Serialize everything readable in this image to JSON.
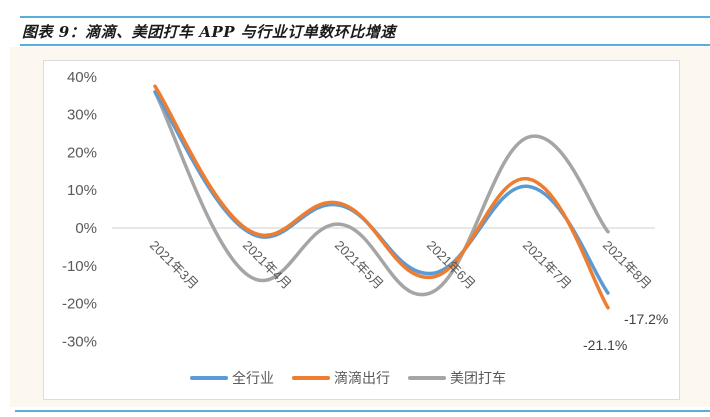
{
  "title": "图表 9：滴滴、美团打车 APP 与行业订单数环比增速",
  "colors": {
    "rule": "#5aaedb",
    "panel_bg": "#fdf8ef",
    "series_industry": "#5b9bd5",
    "series_didi": "#ed7d31",
    "series_meituan": "#a5a5a5"
  },
  "legend": {
    "items": [
      {
        "label": "全行业",
        "color": "#5b9bd5"
      },
      {
        "label": "滴滴出行",
        "color": "#ed7d31"
      },
      {
        "label": "美团打车",
        "color": "#a5a5a5"
      }
    ]
  },
  "data_labels": {
    "industry_last": "-17.2%",
    "didi_last": "-21.1%"
  },
  "chart_data": {
    "type": "line",
    "title": "图表 9：滴滴、美团打车 APP 与行业订单数环比增速",
    "xlabel": "",
    "ylabel": "",
    "categories": [
      "2021年3月",
      "2021年4月",
      "2021年5月",
      "2021年6月",
      "2021年7月",
      "2021年8月"
    ],
    "series": [
      {
        "name": "全行业",
        "values": [
          36.0,
          -1.0,
          6.0,
          -12.0,
          11.0,
          -17.2
        ]
      },
      {
        "name": "滴滴出行",
        "values": [
          37.5,
          -0.5,
          6.5,
          -13.0,
          13.0,
          -21.1
        ]
      },
      {
        "name": "美团打车",
        "values": [
          36.0,
          -12.5,
          1.0,
          -17.0,
          24.0,
          -1.0
        ]
      }
    ],
    "yticks": [
      "40%",
      "30%",
      "20%",
      "10%",
      "0%",
      "-10%",
      "-20%",
      "-30%"
    ],
    "ylim": [
      -30,
      40
    ],
    "grid": false,
    "smooth": true,
    "legend_position": "bottom",
    "annotations": [
      {
        "series": "全行业",
        "category": "2021年8月",
        "text": "-17.2%"
      },
      {
        "series": "滴滴出行",
        "category": "2021年8月",
        "text": "-21.1%"
      }
    ]
  }
}
